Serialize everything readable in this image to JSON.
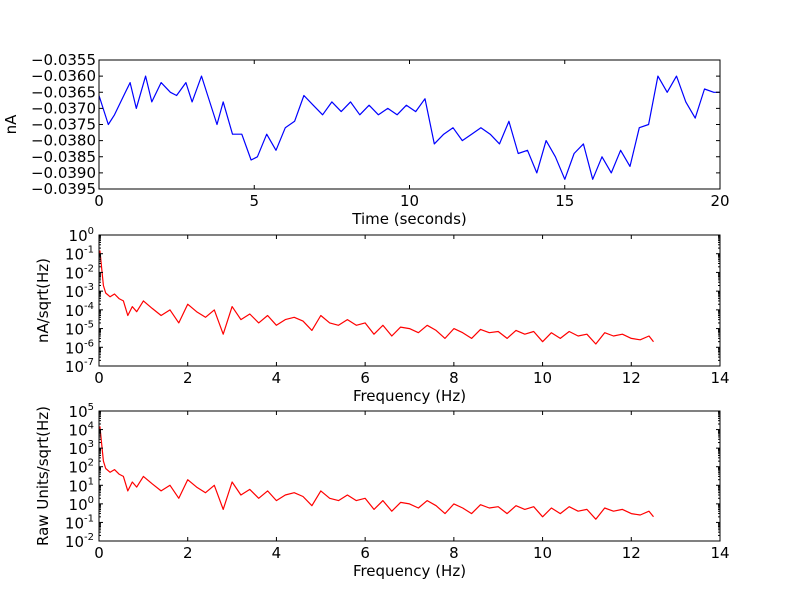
{
  "chart_data": [
    {
      "type": "line",
      "name": "current-trace",
      "xlabel": "Time (seconds)",
      "ylabel": "nA",
      "color": "#0000ff",
      "xlim": [
        0,
        20
      ],
      "ylim": [
        -0.0395,
        -0.0355
      ],
      "xticks": [
        0,
        5,
        10,
        15,
        20
      ],
      "xtick_labels": [
        "0",
        "5",
        "10",
        "15",
        "20"
      ],
      "yticks": [
        -0.0395,
        -0.039,
        -0.0385,
        -0.038,
        -0.0375,
        -0.037,
        -0.0365,
        -0.036,
        -0.0355
      ],
      "ytick_labels": [
        "−0.0395",
        "−0.0390",
        "−0.0385",
        "−0.0380",
        "−0.0375",
        "−0.0370",
        "−0.0365",
        "−0.0360",
        "−0.0355"
      ],
      "series": [
        {
          "name": "signal",
          "x": [
            0,
            0.3,
            0.5,
            0.8,
            1.0,
            1.2,
            1.5,
            1.7,
            2.0,
            2.3,
            2.5,
            2.8,
            3.0,
            3.3,
            3.5,
            3.8,
            4.0,
            4.3,
            4.6,
            4.9,
            5.1,
            5.4,
            5.7,
            6.0,
            6.3,
            6.6,
            6.9,
            7.2,
            7.5,
            7.8,
            8.1,
            8.4,
            8.7,
            9.0,
            9.3,
            9.6,
            9.9,
            10.2,
            10.5,
            10.8,
            11.1,
            11.4,
            11.7,
            12.0,
            12.3,
            12.6,
            12.9,
            13.2,
            13.5,
            13.8,
            14.1,
            14.4,
            14.7,
            15.0,
            15.3,
            15.6,
            15.9,
            16.2,
            16.5,
            16.8,
            17.1,
            17.4,
            17.7,
            18.0,
            18.3,
            18.6,
            18.9,
            19.2,
            19.5,
            19.8,
            20.0
          ],
          "y": [
            -0.0366,
            -0.0375,
            -0.0372,
            -0.0366,
            -0.0362,
            -0.037,
            -0.036,
            -0.0368,
            -0.0362,
            -0.0365,
            -0.0366,
            -0.0362,
            -0.0368,
            -0.036,
            -0.0366,
            -0.0375,
            -0.0368,
            -0.0378,
            -0.0378,
            -0.0386,
            -0.0385,
            -0.0378,
            -0.0383,
            -0.0376,
            -0.0374,
            -0.0366,
            -0.0369,
            -0.0372,
            -0.0368,
            -0.0371,
            -0.0368,
            -0.0372,
            -0.0369,
            -0.0372,
            -0.037,
            -0.0372,
            -0.0369,
            -0.0371,
            -0.0367,
            -0.0381,
            -0.0378,
            -0.0376,
            -0.038,
            -0.0378,
            -0.0376,
            -0.0378,
            -0.0381,
            -0.0374,
            -0.0384,
            -0.0383,
            -0.039,
            -0.038,
            -0.0385,
            -0.0392,
            -0.0384,
            -0.0381,
            -0.0392,
            -0.0385,
            -0.039,
            -0.0383,
            -0.0388,
            -0.0376,
            -0.0375,
            -0.036,
            -0.0365,
            -0.036,
            -0.0368,
            -0.0373,
            -0.0364,
            -0.0365,
            -0.0365
          ]
        }
      ]
    },
    {
      "type": "line",
      "name": "current-psd",
      "xlabel": "Frequency (Hz)",
      "ylabel": "nA/sqrt(Hz)",
      "yscale": "log",
      "color": "#ff0000",
      "xlim": [
        0,
        14
      ],
      "ylim_exp": [
        -7,
        0
      ],
      "xticks": [
        0,
        2,
        4,
        6,
        8,
        10,
        12,
        14
      ],
      "xtick_labels": [
        "0",
        "2",
        "4",
        "6",
        "8",
        "10",
        "12",
        "14"
      ],
      "ytick_base": "10",
      "ytick_exponents": [
        "-7",
        "-6",
        "-5",
        "-4",
        "-3",
        "-2",
        "-1",
        "0"
      ],
      "series": [
        {
          "name": "psd",
          "x": [
            0.02,
            0.05,
            0.1,
            0.15,
            0.25,
            0.35,
            0.45,
            0.55,
            0.65,
            0.75,
            0.85,
            1.0,
            1.2,
            1.4,
            1.6,
            1.8,
            2.0,
            2.2,
            2.4,
            2.6,
            2.8,
            3.0,
            3.2,
            3.4,
            3.6,
            3.8,
            4.0,
            4.2,
            4.4,
            4.6,
            4.8,
            5.0,
            5.2,
            5.4,
            5.6,
            5.8,
            6.0,
            6.2,
            6.4,
            6.6,
            6.8,
            7.0,
            7.2,
            7.4,
            7.6,
            7.8,
            8.0,
            8.2,
            8.4,
            8.6,
            8.8,
            9.0,
            9.2,
            9.4,
            9.6,
            9.8,
            10.0,
            10.2,
            10.4,
            10.6,
            10.8,
            11.0,
            11.2,
            11.4,
            11.6,
            11.8,
            12.0,
            12.2,
            12.4,
            12.5
          ],
          "y": [
            0.15,
            0.03,
            0.002,
            0.0008,
            0.0005,
            0.0007,
            0.0004,
            0.0003,
            5e-05,
            0.00015,
            8e-05,
            0.0003,
            0.00012,
            5e-05,
            0.0001,
            2e-05,
            0.0002,
            8e-05,
            4e-05,
            0.0001,
            5e-06,
            0.00015,
            3e-05,
            6e-05,
            2e-05,
            5e-05,
            1.5e-05,
            3e-05,
            4e-05,
            2.5e-05,
            8e-06,
            5e-05,
            2e-05,
            1.5e-05,
            3e-05,
            1.5e-05,
            2e-05,
            5e-06,
            1.5e-05,
            4e-06,
            1.2e-05,
            1e-05,
            6e-06,
            1.5e-05,
            8e-06,
            3e-06,
            1e-05,
            6e-06,
            3e-06,
            9e-06,
            6e-06,
            7e-06,
            3e-06,
            8e-06,
            5e-06,
            7e-06,
            2e-06,
            6e-06,
            3e-06,
            7e-06,
            4e-06,
            5e-06,
            1.5e-06,
            6e-06,
            4e-06,
            5e-06,
            3e-06,
            2.5e-06,
            4e-06,
            2e-06
          ]
        }
      ]
    },
    {
      "type": "line",
      "name": "raw-psd",
      "xlabel": "Frequency (Hz)",
      "ylabel": "Raw Units/sqrt(Hz)",
      "yscale": "log",
      "color": "#ff0000",
      "xlim": [
        0,
        14
      ],
      "ylim_exp": [
        -2,
        5
      ],
      "xticks": [
        0,
        2,
        4,
        6,
        8,
        10,
        12,
        14
      ],
      "xtick_labels": [
        "0",
        "2",
        "4",
        "6",
        "8",
        "10",
        "12",
        "14"
      ],
      "ytick_base": "10",
      "ytick_exponents": [
        "-2",
        "-1",
        "0",
        "1",
        "2",
        "3",
        "4",
        "5"
      ],
      "series": [
        {
          "name": "psd",
          "x": [
            0.02,
            0.05,
            0.1,
            0.15,
            0.25,
            0.35,
            0.45,
            0.55,
            0.65,
            0.75,
            0.85,
            1.0,
            1.2,
            1.4,
            1.6,
            1.8,
            2.0,
            2.2,
            2.4,
            2.6,
            2.8,
            3.0,
            3.2,
            3.4,
            3.6,
            3.8,
            4.0,
            4.2,
            4.4,
            4.6,
            4.8,
            5.0,
            5.2,
            5.4,
            5.6,
            5.8,
            6.0,
            6.2,
            6.4,
            6.6,
            6.8,
            7.0,
            7.2,
            7.4,
            7.6,
            7.8,
            8.0,
            8.2,
            8.4,
            8.6,
            8.8,
            9.0,
            9.2,
            9.4,
            9.6,
            9.8,
            10.0,
            10.2,
            10.4,
            10.6,
            10.8,
            11.0,
            11.2,
            11.4,
            11.6,
            11.8,
            12.0,
            12.2,
            12.4,
            12.5
          ],
          "y": [
            15000,
            3000,
            200,
            80,
            50,
            70,
            40,
            30,
            5,
            15,
            8,
            30,
            12,
            5,
            10,
            2,
            20,
            8,
            4,
            10,
            0.5,
            15,
            3,
            6,
            2,
            5,
            1.5,
            3,
            4,
            2.5,
            0.8,
            5,
            2,
            1.5,
            3,
            1.5,
            2,
            0.5,
            1.5,
            0.4,
            1.2,
            1,
            0.6,
            1.5,
            0.8,
            0.3,
            1,
            0.6,
            0.3,
            0.9,
            0.6,
            0.7,
            0.3,
            0.8,
            0.5,
            0.7,
            0.2,
            0.6,
            0.3,
            0.7,
            0.4,
            0.5,
            0.15,
            0.6,
            0.4,
            0.5,
            0.3,
            0.25,
            0.4,
            0.2
          ]
        }
      ]
    }
  ]
}
